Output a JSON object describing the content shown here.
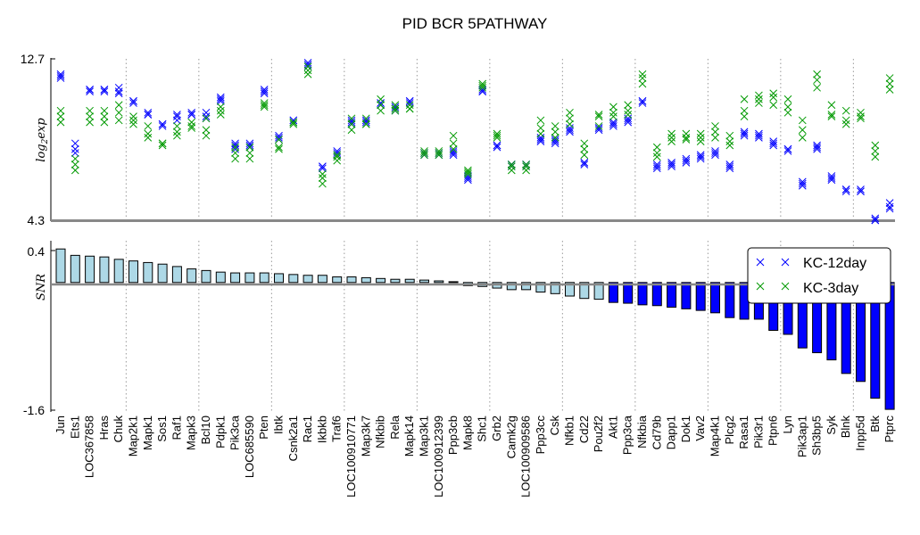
{
  "chart_data": {
    "type": "scatter",
    "title": "PID BCR 5PATHWAY",
    "genes": [
      "Jun",
      "Ets1",
      "LOC367858",
      "Hras",
      "Chuk",
      "Map2k1",
      "Mapk1",
      "Sos1",
      "Raf1",
      "Mapk3",
      "Bcl10",
      "Pdpk1",
      "Pik3ca",
      "LOC685590",
      "Pten",
      "Ibtk",
      "Csnk2a1",
      "Rac1",
      "Ikbkb",
      "Traf6",
      "LOC100910771",
      "Map3k7",
      "Nfkbib",
      "Rela",
      "Mapk14",
      "Map3k1",
      "LOC100912399",
      "Ppp3cb",
      "Mapk8",
      "Shc1",
      "Grb2",
      "Camk2g",
      "LOC100909586",
      "Ppp3cc",
      "Csk",
      "Nfkb1",
      "Cd22",
      "Pou2f2",
      "Akt1",
      "Ppp3ca",
      "Nfkbia",
      "Cd79b",
      "Dapp1",
      "Dok1",
      "Vav2",
      "Map4k1",
      "Plcg2",
      "Rasa1",
      "Pik3r1",
      "Ptpn6",
      "Lyn",
      "Pik3ap1",
      "Sh3bp5",
      "Syk",
      "Blnk",
      "Inpp5d",
      "Btk",
      "Ptprc"
    ],
    "top_panel": {
      "ylabel": "log_2exp",
      "ylabel_main": "log",
      "ylabel_sub": "2",
      "ylabel_rest": "exp",
      "ylim": [
        4.3,
        12.7
      ],
      "yticks": [
        "12.7",
        "4.3"
      ],
      "series": [
        {
          "name": "KC-12day",
          "color": "#0000ff",
          "values": [
            [
              11.9,
              11.8,
              11.7
            ],
            [
              8.3,
              8.0,
              7.8
            ],
            [
              11.1,
              11.0,
              11.1
            ],
            [
              11.1,
              11.0,
              11.1
            ],
            [
              11.2,
              10.9,
              11.0
            ],
            [
              10.5,
              10.4,
              10.5
            ],
            [
              9.9,
              9.8,
              9.8
            ],
            [
              9.3,
              9.2,
              9.3
            ],
            [
              9.8,
              9.7,
              9.5
            ],
            [
              9.9,
              9.8,
              9.8
            ],
            [
              9.9,
              9.7,
              9.6
            ],
            [
              10.7,
              10.5,
              10.6
            ],
            [
              8.3,
              8.2,
              8.0
            ],
            [
              8.3,
              8.1,
              8.2
            ],
            [
              11.1,
              11.0,
              10.9
            ],
            [
              8.7,
              8.6,
              8.5
            ],
            [
              9.5,
              9.4,
              9.5
            ],
            [
              12.5,
              12.4,
              12.3
            ],
            [
              7.1,
              7.0,
              7.1
            ],
            [
              7.8,
              7.7,
              7.9
            ],
            [
              9.5,
              9.4,
              9.3
            ],
            [
              9.5,
              9.4,
              9.5
            ],
            [
              10.4,
              10.3,
              10.4
            ],
            [
              10.2,
              10.1,
              10.0
            ],
            [
              10.5,
              10.4,
              10.5
            ],
            [
              7.8,
              7.8,
              7.7
            ],
            [
              7.8,
              7.7,
              7.8
            ],
            [
              7.9,
              7.8,
              7.7
            ],
            [
              6.6,
              6.5,
              6.4
            ],
            [
              11.1,
              11.0,
              11.0
            ],
            [
              8.2,
              8.2,
              8.1
            ],
            [
              7.2,
              7.1,
              7.2
            ],
            [
              7.2,
              7.1,
              7.2
            ],
            [
              8.5,
              8.4,
              8.6
            ],
            [
              8.5,
              8.3,
              8.4
            ],
            [
              9.0,
              8.9,
              9.1
            ],
            [
              7.3,
              7.2,
              7.3
            ],
            [
              9.1,
              9.0,
              9.1
            ],
            [
              9.4,
              9.2,
              9.3
            ],
            [
              9.5,
              9.4,
              9.6
            ],
            [
              10.5,
              10.4,
              10.5
            ],
            [
              7.1,
              7.0,
              7.2
            ],
            [
              7.3,
              7.2,
              7.1
            ],
            [
              7.4,
              7.3,
              7.5
            ],
            [
              7.7,
              7.5,
              7.6
            ],
            [
              7.8,
              7.7,
              7.9
            ],
            [
              7.1,
              7.0,
              7.2
            ],
            [
              8.9,
              8.8,
              8.7
            ],
            [
              8.8,
              8.6,
              8.7
            ],
            [
              8.3,
              8.2,
              8.4
            ],
            [
              8.0,
              7.9,
              8.0
            ],
            [
              6.3,
              6.1,
              6.2
            ],
            [
              8.1,
              8.2,
              8.0
            ],
            [
              6.5,
              6.4,
              6.6
            ],
            [
              5.9,
              5.8,
              5.9
            ],
            [
              5.8,
              5.9,
              5.8
            ],
            [
              4.4,
              4.3,
              4.3
            ],
            [
              5.2,
              5.0,
              4.9
            ]
          ]
        },
        {
          "name": "KC-3day",
          "color": "#009900",
          "values": [
            [
              10.0,
              9.7,
              9.4
            ],
            [
              7.5,
              7.2,
              6.9
            ],
            [
              10.0,
              9.7,
              9.4
            ],
            [
              10.0,
              9.7,
              9.4
            ],
            [
              10.3,
              9.9,
              9.5
            ],
            [
              9.7,
              9.5,
              9.3
            ],
            [
              9.2,
              8.8,
              8.6
            ],
            [
              8.3,
              8.2,
              8.3
            ],
            [
              9.2,
              8.9,
              8.7
            ],
            [
              9.4,
              9.1,
              9.2
            ],
            [
              9.6,
              9.0,
              8.7
            ],
            [
              10.2,
              10.0,
              9.8
            ],
            [
              8.1,
              7.8,
              7.5
            ],
            [
              8.1,
              7.8,
              7.5
            ],
            [
              10.4,
              10.3,
              10.2
            ],
            [
              8.5,
              8.1,
              8.0
            ],
            [
              9.4,
              9.3,
              9.4
            ],
            [
              12.3,
              12.1,
              11.9
            ],
            [
              6.7,
              6.5,
              6.2
            ],
            [
              7.7,
              7.4,
              7.6
            ],
            [
              9.6,
              9.3,
              9.0
            ],
            [
              9.6,
              9.3,
              9.3
            ],
            [
              10.6,
              10.3,
              10.0
            ],
            [
              10.3,
              10.0,
              10.1
            ],
            [
              10.3,
              10.1,
              10.1
            ],
            [
              7.9,
              7.7,
              7.8
            ],
            [
              7.9,
              7.7,
              7.8
            ],
            [
              8.7,
              8.3,
              8.0
            ],
            [
              6.9,
              6.7,
              6.8
            ],
            [
              11.4,
              11.2,
              11.3
            ],
            [
              8.8,
              8.6,
              8.7
            ],
            [
              7.1,
              6.9,
              7.2
            ],
            [
              7.1,
              6.9,
              7.2
            ],
            [
              9.5,
              9.1,
              8.8
            ],
            [
              9.2,
              8.9,
              8.6
            ],
            [
              9.9,
              9.6,
              9.3
            ],
            [
              8.3,
              8.0,
              7.7
            ],
            [
              9.8,
              9.7,
              9.2
            ],
            [
              10.2,
              9.9,
              9.7
            ],
            [
              10.3,
              10.0,
              9.8
            ],
            [
              11.9,
              11.7,
              11.4
            ],
            [
              8.1,
              7.8,
              7.6
            ],
            [
              8.8,
              8.6,
              8.4
            ],
            [
              8.8,
              8.6,
              8.5
            ],
            [
              8.8,
              8.6,
              8.4
            ],
            [
              9.2,
              8.9,
              8.6
            ],
            [
              8.7,
              8.4,
              8.2
            ],
            [
              10.6,
              10.0,
              9.7
            ],
            [
              10.8,
              10.6,
              10.4
            ],
            [
              10.9,
              10.7,
              10.3
            ],
            [
              10.6,
              10.2,
              9.9
            ],
            [
              9.5,
              9.0,
              8.6
            ],
            [
              11.9,
              11.6,
              11.2
            ],
            [
              10.3,
              9.8,
              9.7
            ],
            [
              10.0,
              9.5,
              9.3
            ],
            [
              9.9,
              9.6,
              9.7
            ],
            [
              8.2,
              7.9,
              7.6
            ],
            [
              11.7,
              11.4,
              11.1
            ]
          ]
        }
      ]
    },
    "bottom_panel": {
      "ylabel": "SNR",
      "ylim": [
        -1.6,
        0.4
      ],
      "yticks": [
        "0.4",
        "-1.6"
      ],
      "pos_color": "#add8e6",
      "neg_color": "#0000ff",
      "neg_light_color": "#add8e6",
      "values": [
        0.42,
        0.34,
        0.33,
        0.32,
        0.29,
        0.27,
        0.25,
        0.23,
        0.2,
        0.17,
        0.15,
        0.13,
        0.12,
        0.12,
        0.12,
        0.11,
        0.1,
        0.09,
        0.09,
        0.07,
        0.07,
        0.06,
        0.05,
        0.04,
        0.04,
        0.03,
        0.02,
        0.01,
        -0.04,
        -0.05,
        -0.07,
        -0.09,
        -0.09,
        -0.12,
        -0.14,
        -0.17,
        -0.2,
        -0.21,
        -0.25,
        -0.26,
        -0.28,
        -0.29,
        -0.31,
        -0.33,
        -0.35,
        -0.38,
        -0.44,
        -0.46,
        -0.46,
        -0.6,
        -0.65,
        -0.82,
        -0.88,
        -0.97,
        -1.14,
        -1.24,
        -1.45,
        -1.59
      ]
    },
    "legend": {
      "position": "top-right",
      "entries": [
        "KC-12day",
        "KC-3day"
      ]
    },
    "grid": "vertical dotted every 5 genes"
  }
}
